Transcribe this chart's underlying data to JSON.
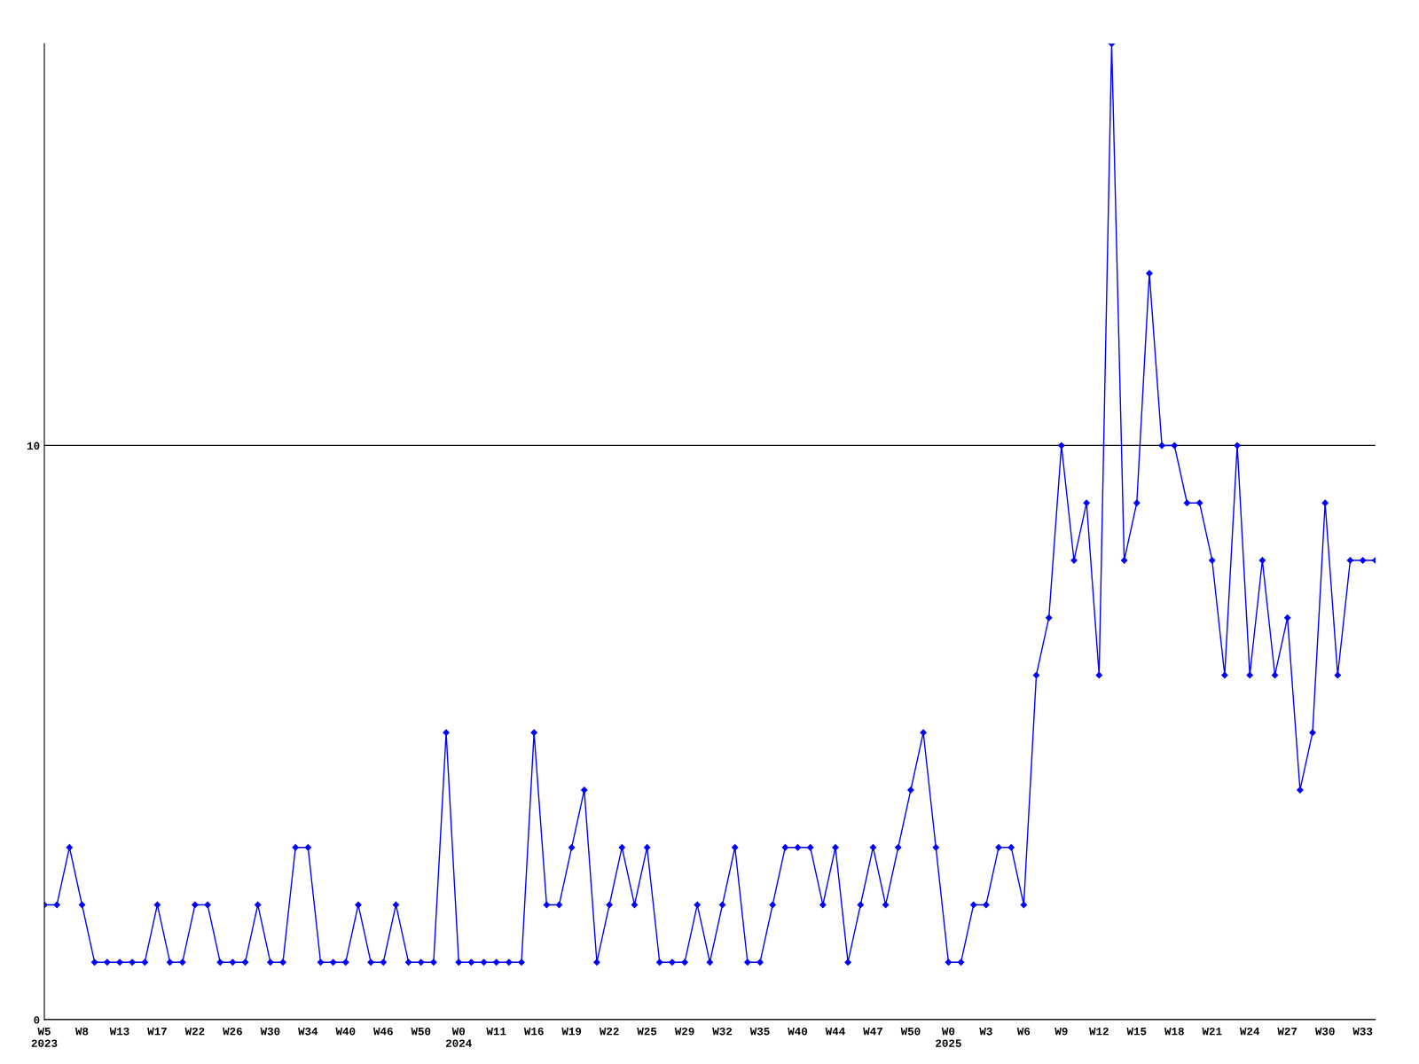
{
  "chart_data": {
    "type": "line",
    "categories": [
      "W5\n2023",
      null,
      null,
      "W8",
      null,
      null,
      "W13",
      null,
      null,
      "W17",
      null,
      null,
      "W22",
      null,
      null,
      "W26",
      null,
      null,
      "W30",
      null,
      null,
      "W34",
      null,
      null,
      "W40",
      null,
      null,
      "W46",
      null,
      null,
      "W50",
      null,
      null,
      "W0\n2024",
      null,
      null,
      "W11",
      null,
      null,
      "W16",
      null,
      null,
      "W19",
      null,
      null,
      "W22",
      null,
      null,
      "W25",
      null,
      null,
      "W29",
      null,
      null,
      "W32",
      null,
      null,
      "W35",
      null,
      null,
      "W40",
      null,
      null,
      "W44",
      null,
      null,
      "W47",
      null,
      null,
      "W50",
      null,
      null,
      "W0\n2025",
      null,
      null,
      "W3",
      null,
      null,
      "W6",
      null,
      null,
      "W9",
      null,
      null,
      "W12",
      null,
      null,
      "W15",
      null,
      null,
      "W18",
      null,
      null,
      "W21",
      null,
      null,
      "W24",
      null,
      null,
      "W27",
      null,
      null,
      "W30",
      null,
      null,
      "W33",
      null
    ],
    "series": [
      {
        "color": "#0000ff",
        "values": [
          2,
          2,
          3,
          2,
          1,
          1,
          1,
          1,
          1,
          2,
          1,
          1,
          2,
          2,
          1,
          1,
          1,
          2,
          1,
          1,
          3,
          3,
          1,
          1,
          1,
          2,
          1,
          1,
          2,
          1,
          1,
          1,
          5,
          1,
          1,
          1,
          1,
          1,
          1,
          5,
          2,
          2,
          3,
          4,
          1,
          2,
          3,
          2,
          3,
          1,
          1,
          1,
          2,
          1,
          2,
          3,
          1,
          1,
          2,
          3,
          3,
          3,
          2,
          3,
          1,
          2,
          3,
          2,
          3,
          4,
          5,
          3,
          1,
          1,
          2,
          2,
          3,
          3,
          2,
          6,
          7,
          10,
          8,
          9,
          6,
          17,
          8,
          9,
          13,
          10,
          10,
          9,
          9,
          8,
          6,
          10,
          6,
          8,
          6,
          7,
          4,
          5,
          9,
          6,
          8,
          8,
          8
        ]
      }
    ],
    "ylim": [
      0,
      17
    ],
    "yticks": [
      0,
      10
    ],
    "grid": "y",
    "marker": "diamond",
    "line_style": "solid",
    "legend": false
  }
}
